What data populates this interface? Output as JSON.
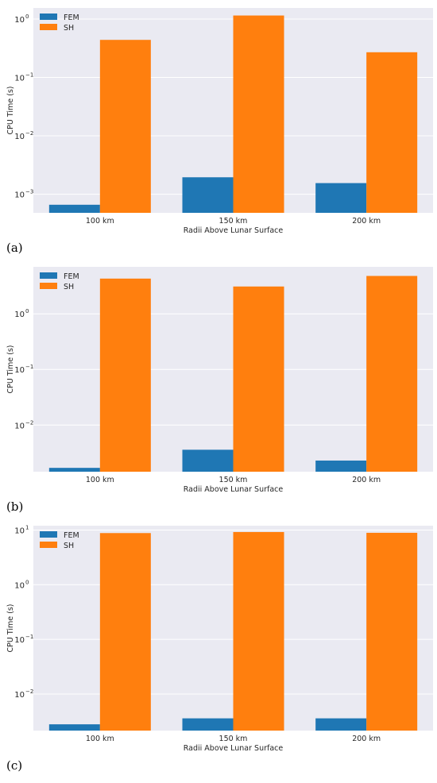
{
  "chart_data": [
    {
      "panel": "(a)",
      "type": "bar",
      "categories": [
        "100 km",
        "150 km",
        "200 km"
      ],
      "series": [
        {
          "name": "FEM",
          "values": [
            0.00066,
            0.00195,
            0.00155
          ]
        },
        {
          "name": "SH",
          "values": [
            0.44,
            1.15,
            0.27
          ]
        }
      ],
      "xlabel": "Radii Above Lunar Surface",
      "ylabel": "CPU Time (s)",
      "yscale": "log",
      "ylim": [
        0.00048,
        1.55
      ],
      "ticks": [
        {
          "value": 1,
          "base": "10",
          "exp": "0"
        },
        {
          "value": 0.1,
          "base": "10",
          "exp": "−1"
        },
        {
          "value": 0.01,
          "base": "10",
          "exp": "−2"
        },
        {
          "value": 0.001,
          "base": "10",
          "exp": "−3"
        }
      ],
      "colors": {
        "FEM": "#1f77b4",
        "SH": "#ff7f0e"
      },
      "legend": "top-left",
      "grid": true
    },
    {
      "panel": "(b)",
      "type": "bar",
      "categories": [
        "100 km",
        "150 km",
        "200 km"
      ],
      "series": [
        {
          "name": "FEM",
          "values": [
            0.0017,
            0.0036,
            0.0023
          ]
        },
        {
          "name": "SH",
          "values": [
            4.3,
            3.1,
            4.8
          ]
        }
      ],
      "xlabel": "Radii Above Lunar Surface",
      "ylabel": "CPU Time (s)",
      "yscale": "log",
      "ylim": [
        0.00145,
        7.0
      ],
      "ticks": [
        {
          "value": 1,
          "base": "10",
          "exp": "0"
        },
        {
          "value": 0.1,
          "base": "10",
          "exp": "−1"
        },
        {
          "value": 0.01,
          "base": "10",
          "exp": "−2"
        }
      ],
      "colors": {
        "FEM": "#1f77b4",
        "SH": "#ff7f0e"
      },
      "legend": "top-left",
      "grid": true
    },
    {
      "panel": "(c)",
      "type": "bar",
      "categories": [
        "100 km",
        "150 km",
        "200 km"
      ],
      "series": [
        {
          "name": "FEM",
          "values": [
            0.0028,
            0.0036,
            0.0036
          ]
        },
        {
          "name": "SH",
          "values": [
            8.8,
            9.2,
            8.9
          ]
        }
      ],
      "xlabel": "Radii Above Lunar Surface",
      "ylabel": "CPU Time (s)",
      "yscale": "log",
      "ylim": [
        0.00215,
        12.0
      ],
      "ticks": [
        {
          "value": 10,
          "base": "10",
          "exp": "1"
        },
        {
          "value": 1,
          "base": "10",
          "exp": "0"
        },
        {
          "value": 0.1,
          "base": "10",
          "exp": "−1"
        },
        {
          "value": 0.01,
          "base": "10",
          "exp": "−2"
        }
      ],
      "colors": {
        "FEM": "#1f77b4",
        "SH": "#ff7f0e"
      },
      "legend": "top-left",
      "grid": true
    }
  ]
}
